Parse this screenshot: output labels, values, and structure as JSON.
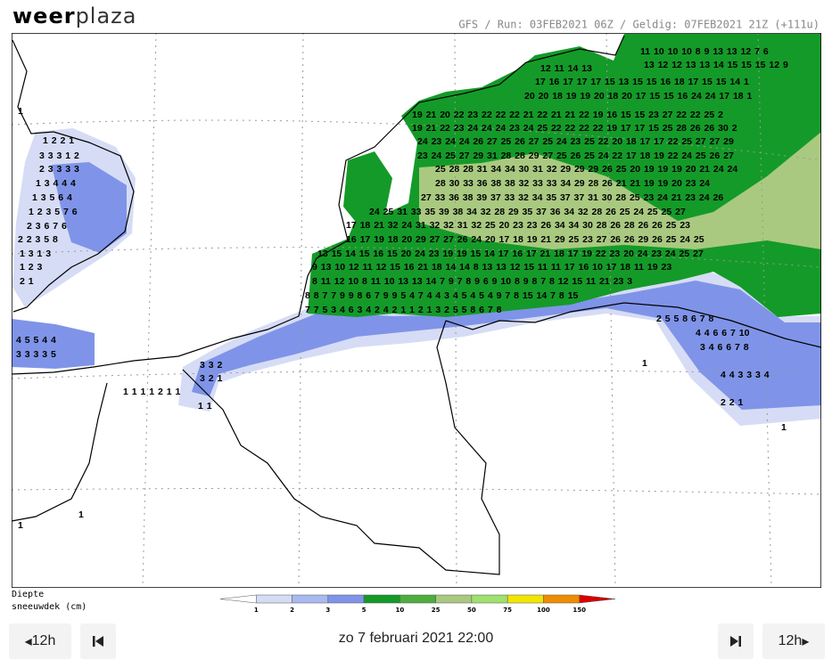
{
  "header": {
    "logo_bold": "weer",
    "logo_light": "plaza",
    "run_info": "GFS / Run: 03FEB2021 06Z / Geldig: 07FEB2021 21Z (+111u)"
  },
  "map_labels": [
    "12 11 14 13",
    "11 10 10 10 8 9 13 13 12 7 6",
    "13 12 12 13 13 14 15 15 15 12 9",
    "17 16 17 17 17 15 13 15 15 16 18 17 15 15 14 1",
    "20 20 18 19 19 20 18 20 17 15 15 16 24 24 17 18 1",
    "19 21 20 22 23 22 22 22 21 22 21 21 22 19 16 15 15 23 27 22 22 25 2",
    "19 21 22 23 24 24 24 23 24 25 22 22 22 22 19 17 17 15 25 28 26 26 30 2",
    "24 23 24 24 26 27 25 26 27 25 24 23 25 22 20 18 17 17 22 25 27 27 29",
    "23 24 25 27 29 31 28 28 29 27 25 26 25 24 22 17 18 19 22 24 25 26 27",
    "25 28 28 31 34 34 30 31 32 29 29 29 26 25 20 19 19 19 20 21 24 24",
    "28 30 33 36 38 38 32 33 33 34 29 28 26 21 21 19 19 20 23 24",
    "27 33 36 38 39 37 33 32 34 35 37 37 31 30 28 25 23 24 21 23 24 26",
    "24 25 31 33 35 39 38 34 32 28 29 35 37 36 34 32 28 26 25 24 25 25 27",
    "17 18 21 32 24 31 32 32 31 32 25 20 23 23 26 34 34 30 28 26 28 26 26 25 23",
    "16 17 19 18 20 29 27 27 26 24 20 17 18 19 21 29 25 23 27 26 26 29 26 25 24 25",
    "13 15 14 15 16 15 20 24 23 19 19 15 14 17 16 17 21 18 17 19 22 23 20 24 23 24 25 27",
    "9 13 10 12 11 12 15 16 21 18 14 14 8 13 13 12 15 11 11 17 16 10 17 18 11 19 23",
    "8 11 12 10 8 11 10 13 13 14 7 9 7 8 9 6 9 10 8 9 8 7 8 12 15 11 21 23 3",
    "8 8 7 7 9 9 8 6 7 9 9 5 4 7 4 4 3 4 5 4 5 4 9 7 8 15 14 7 8 15",
    "7 7 5 3 4 6 3 4 2 4 2 1 1 2 1 3 2 5 5 8 6 7 8",
    "1 2 2 1",
    "3 3 3 1 2",
    "2 3 3 3 3",
    "1 3 4 4 4",
    "1 3 5 6 4",
    "1 2 3 5 7 6",
    "2 3 6 7 6",
    "2 2 3 5 8",
    "1 3 1 3",
    "1 2 3",
    "2 1",
    "4 5 5 4 4",
    "3 3 3 3 5",
    "3 3 2",
    "3 2 1",
    "1 1 1 1 2 1 1",
    "1 1",
    "2 5 5 8 6 7 8",
    "4 4 6 6 7 10",
    "3 4 6 6 7 8",
    "4 4 3 3 3 4",
    "2 2 1",
    "1",
    "1",
    "1",
    "1",
    "1"
  ],
  "legend": {
    "title_line1": "Diepte",
    "title_line2": "sneeuwdek (cm)",
    "labels": [
      1,
      2,
      3,
      5,
      10,
      25,
      50,
      75,
      100,
      150
    ],
    "colors": [
      "#ffffff",
      "#d6dcf5",
      "#a9baf0",
      "#7f94e8",
      "#149a28",
      "#4dae3e",
      "#a9c980",
      "#9fe06e",
      "#f0e600",
      "#f08c00",
      "#d80000"
    ]
  },
  "navigation": {
    "prev": "12h",
    "next": "12h",
    "datetime": "zo 7 februari 2021 22:00"
  }
}
